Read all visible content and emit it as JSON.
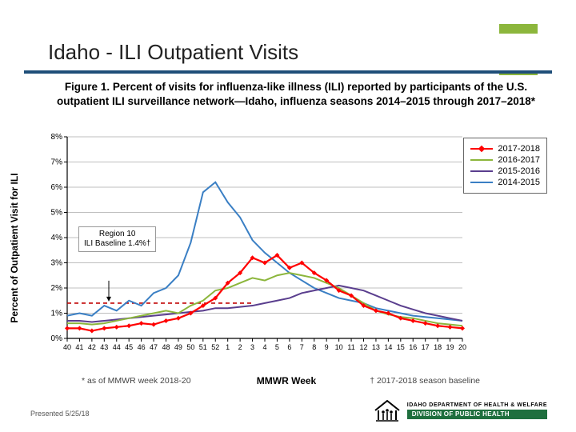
{
  "slide": {
    "title": "Idaho - ILI Outpatient Visits",
    "accent_color": "#8cb63c",
    "underline_color": "#1f4e79"
  },
  "figure_title": "Figure 1. Percent of visits for influenza-like illness (ILI) reported by participants of the U.S. outpatient ILI surveillance network—Idaho, influenza seasons 2014–2015 through 2017–2018*",
  "chart": {
    "type": "line",
    "background_color": "#ffffff",
    "grid_color": "#bfbfbf",
    "axis_color": "#000000",
    "tick_fontsize": 10,
    "x_label": "MMWR Week",
    "y_label": "Percent of Outpatient Visit for ILI",
    "label_fontsize": 12,
    "x_categories": [
      "40",
      "41",
      "42",
      "43",
      "44",
      "45",
      "46",
      "47",
      "48",
      "49",
      "50",
      "51",
      "52",
      "1",
      "2",
      "3",
      "4",
      "5",
      "6",
      "7",
      "8",
      "9",
      "10",
      "11",
      "12",
      "13",
      "14",
      "15",
      "16",
      "17",
      "18",
      "19",
      "20"
    ],
    "y_ticks": [
      "0%",
      "1%",
      "2%",
      "3%",
      "4%",
      "5%",
      "6%",
      "7%",
      "8%"
    ],
    "ylim": [
      0,
      8
    ],
    "baseline": {
      "value": 1.4,
      "label_line1": "Region 10",
      "label_line2": "ILI Baseline 1.4%†",
      "color": "#c00000",
      "dash": "5,4"
    },
    "series": [
      {
        "name": "2017-2018",
        "color": "#ff0000",
        "marker": "diamond",
        "line_width": 2.2,
        "values": [
          0.4,
          0.4,
          0.3,
          0.4,
          0.45,
          0.5,
          0.6,
          0.55,
          0.7,
          0.8,
          1.0,
          1.3,
          1.6,
          2.2,
          2.6,
          3.2,
          3.0,
          3.3,
          2.8,
          3.0,
          2.6,
          2.3,
          1.9,
          1.7,
          1.3,
          1.1,
          1.0,
          0.8,
          0.7,
          0.6,
          0.5,
          0.45,
          0.4
        ]
      },
      {
        "name": "2016-2017",
        "color": "#8cb63c",
        "marker": "none",
        "line_width": 2,
        "values": [
          0.6,
          0.6,
          0.55,
          0.6,
          0.7,
          0.8,
          0.9,
          1.0,
          1.1,
          1.0,
          1.3,
          1.5,
          1.9,
          2.0,
          2.2,
          2.4,
          2.3,
          2.5,
          2.6,
          2.5,
          2.4,
          2.2,
          2.0,
          1.7,
          1.4,
          1.1,
          0.95,
          0.85,
          0.8,
          0.7,
          0.6,
          0.55,
          0.5
        ]
      },
      {
        "name": "2015-2016",
        "color": "#5a3e8e",
        "marker": "none",
        "line_width": 2,
        "values": [
          0.7,
          0.7,
          0.65,
          0.7,
          0.75,
          0.8,
          0.85,
          0.9,
          0.95,
          1.0,
          1.05,
          1.1,
          1.2,
          1.2,
          1.25,
          1.3,
          1.4,
          1.5,
          1.6,
          1.8,
          1.9,
          2.0,
          2.1,
          2.0,
          1.9,
          1.7,
          1.5,
          1.3,
          1.15,
          1.0,
          0.9,
          0.8,
          0.7
        ]
      },
      {
        "name": "2014-2015",
        "color": "#3a7fc4",
        "marker": "none",
        "line_width": 2,
        "values": [
          0.9,
          1.0,
          0.9,
          1.3,
          1.1,
          1.5,
          1.3,
          1.8,
          2.0,
          2.5,
          3.8,
          5.8,
          6.2,
          5.4,
          4.8,
          3.9,
          3.4,
          3.0,
          2.6,
          2.3,
          2.0,
          1.8,
          1.6,
          1.5,
          1.4,
          1.2,
          1.1,
          1.0,
          0.9,
          0.85,
          0.8,
          0.75,
          0.7
        ]
      }
    ]
  },
  "footnotes": {
    "left": "* as of MMWR week 2018-20",
    "right": "† 2017-2018 season baseline"
  },
  "presented": "Presented 5/25/18",
  "logo": {
    "top": "IDAHO DEPARTMENT OF HEALTH & WELFARE",
    "bottom": "DIVISION OF PUBLIC HEALTH",
    "green": "#1f6f3e"
  }
}
